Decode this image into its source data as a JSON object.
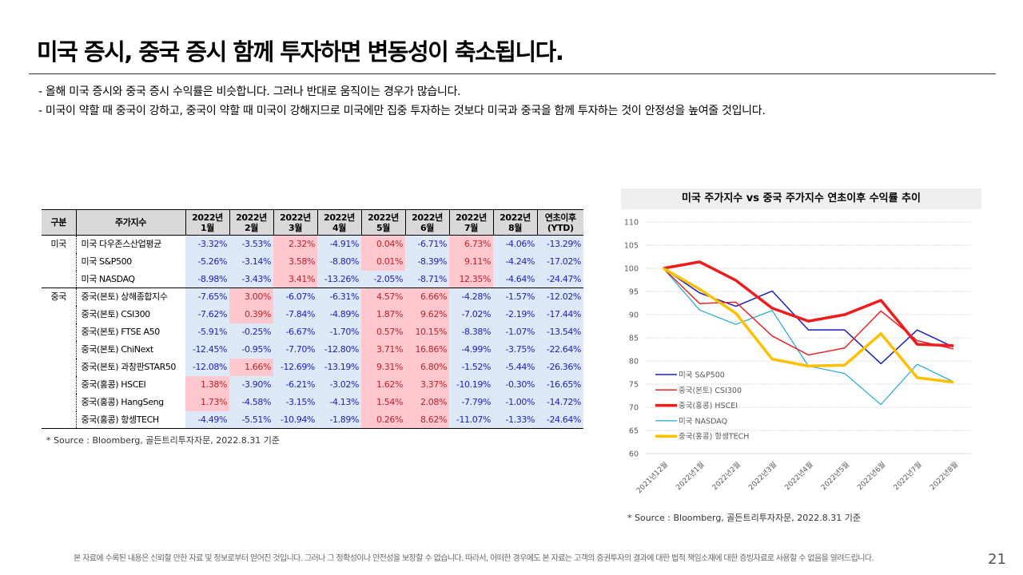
{
  "header": {
    "title": "미국 증시, 중국 증시 함께 투자하면 변동성이 축소됩니다.",
    "bullets": [
      "- 올해 미국 증시와 중국 증시 수익률은 비슷합니다.  그러나 반대로 움직이는 경우가 많습니다.",
      "- 미국이 약할 때 중국이 강하고, 중국이 약할 때 미국이 강해지므로 미국에만 집중 투자하는 것보다 미국과 중국을 함께 투자하는 것이 안정성을 높여줄 것입니다."
    ]
  },
  "table": {
    "headers": [
      "구분",
      "주가지수",
      "2022년\n1월",
      "2022년\n2월",
      "2022년\n3월",
      "2022년\n4월",
      "2022년\n5월",
      "2022년\n6월",
      "2022년\n7월",
      "2022년\n8월",
      "연초이후\n(YTD)"
    ],
    "rows": [
      {
        "group": "미국",
        "name": "미국 다우존스산업평균",
        "values": [
          "-3.32%",
          "-3.53%",
          "2.32%",
          "-4.91%",
          "0.04%",
          "-6.71%",
          "6.73%",
          "-4.06%",
          "-13.29%"
        ]
      },
      {
        "group": "",
        "name": "미국 S&P500",
        "values": [
          "-5.26%",
          "-3.14%",
          "3.58%",
          "-8.80%",
          "0.01%",
          "-8.39%",
          "9.11%",
          "-4.24%",
          "-17.02%"
        ]
      },
      {
        "group": "",
        "name": "미국 NASDAQ",
        "values": [
          "-8.98%",
          "-3.43%",
          "3.41%",
          "-13.26%",
          "-2.05%",
          "-8.71%",
          "12.35%",
          "-4.64%",
          "-24.47%"
        ]
      },
      {
        "group": "중국",
        "name": "중국(본토) 상해종합지수",
        "values": [
          "-7.65%",
          "3.00%",
          "-6.07%",
          "-6.31%",
          "4.57%",
          "6.66%",
          "-4.28%",
          "-1.57%",
          "-12.02%"
        ]
      },
      {
        "group": "",
        "name": "중국(본토) CSI300",
        "values": [
          "-7.62%",
          "0.39%",
          "-7.84%",
          "-4.89%",
          "1.87%",
          "9.62%",
          "-7.02%",
          "-2.19%",
          "-17.44%"
        ]
      },
      {
        "group": "",
        "name": "중국(본토) FTSE A50",
        "values": [
          "-5.91%",
          "-0.25%",
          "-6.67%",
          "-1.70%",
          "0.57%",
          "10.15%",
          "-8.38%",
          "-1.07%",
          "-13.54%"
        ]
      },
      {
        "group": "",
        "name": "중국(본토) ChiNext",
        "values": [
          "-12.45%",
          "-0.95%",
          "-7.70%",
          "-12.80%",
          "3.71%",
          "16.86%",
          "-4.99%",
          "-3.75%",
          "-22.64%"
        ]
      },
      {
        "group": "",
        "name": "중국(본토) 과창판STAR50",
        "values": [
          "-12.08%",
          "1.66%",
          "-12.69%",
          "-13.19%",
          "9.31%",
          "6.80%",
          "-1.52%",
          "-5.44%",
          "-26.36%"
        ]
      },
      {
        "group": "",
        "name": "중국(홍콩) HSCEI",
        "values": [
          "1.38%",
          "-3.90%",
          "-6.21%",
          "-3.02%",
          "1.62%",
          "3.37%",
          "-10.19%",
          "-0.30%",
          "-16.65%"
        ]
      },
      {
        "group": "",
        "name": "중국(홍콩) HangSeng",
        "values": [
          "1.73%",
          "-4.58%",
          "-3.15%",
          "-4.13%",
          "1.54%",
          "2.08%",
          "-7.79%",
          "-1.00%",
          "-14.72%"
        ]
      },
      {
        "group": "",
        "name": "중국(홍콩) 항셍TECH",
        "values": [
          "-4.49%",
          "-5.51%",
          "-10.94%",
          "-1.89%",
          "0.26%",
          "8.62%",
          "-11.07%",
          "-1.33%",
          "-24.64%"
        ]
      }
    ],
    "source": "* Source : Bloomberg, 골든트리투자자문, 2022.8.31 기준"
  },
  "chart_data": {
    "type": "line",
    "title": "미국 주가지수 vs 중국 주가지수 연초이후 수익률 추이",
    "categories": [
      "2021년12월",
      "2022년1월",
      "2022년2월",
      "2022년3월",
      "2022년4월",
      "2022년5월",
      "2022년6월",
      "2022년7월",
      "2022년8월"
    ],
    "ylim": [
      60,
      110
    ],
    "yticks": [
      60,
      65,
      70,
      75,
      80,
      85,
      90,
      95,
      100,
      105,
      110
    ],
    "grid": true,
    "legend": "bottom-left",
    "series": [
      {
        "name": "미국 S&P500",
        "color": "#1f1fb4",
        "width": 1.5,
        "values": [
          100,
          94.7,
          91.8,
          95.1,
          86.7,
          86.7,
          79.4,
          86.7,
          83.0
        ]
      },
      {
        "name": "중국(본토) CSI300",
        "color": "#e8262a",
        "width": 1.5,
        "values": [
          100,
          92.4,
          92.7,
          85.4,
          81.3,
          82.8,
          90.8,
          84.4,
          82.6
        ]
      },
      {
        "name": "중국(홍콩) HSCEI",
        "color": "#ee1c1c",
        "width": 3.5,
        "values": [
          100,
          101.4,
          97.4,
          91.4,
          88.6,
          90.0,
          93.1,
          83.6,
          83.3
        ]
      },
      {
        "name": "미국 NASDAQ",
        "color": "#20a8d8",
        "width": 1.2,
        "values": [
          100,
          91.0,
          87.9,
          90.9,
          78.9,
          77.3,
          70.6,
          79.3,
          75.5
        ]
      },
      {
        "name": "중국(홍콩) 항셍TECH",
        "color": "#ffc000",
        "width": 3.5,
        "values": [
          100,
          95.5,
          90.3,
          80.4,
          78.9,
          79.1,
          85.9,
          76.4,
          75.4
        ]
      }
    ],
    "source": "* Source : Bloomberg, 골든트리투자자문, 2022.8.31 기준"
  },
  "footer": {
    "disclaimer": "본 자료에 수록된 내용은 신뢰할 만한 자료 및 정보로부터 얻어진 것입니다. 그러나 그 정확성이나 안전성을 보장할 수 없습니다. 따라서, 어떠한 경우에도 본 자료는 고객의 증권투자의 결과에 대한 법적 책임소재에 대한 증빙자료로 사용할 수 없음을 알려드립니다.",
    "page": "21"
  }
}
